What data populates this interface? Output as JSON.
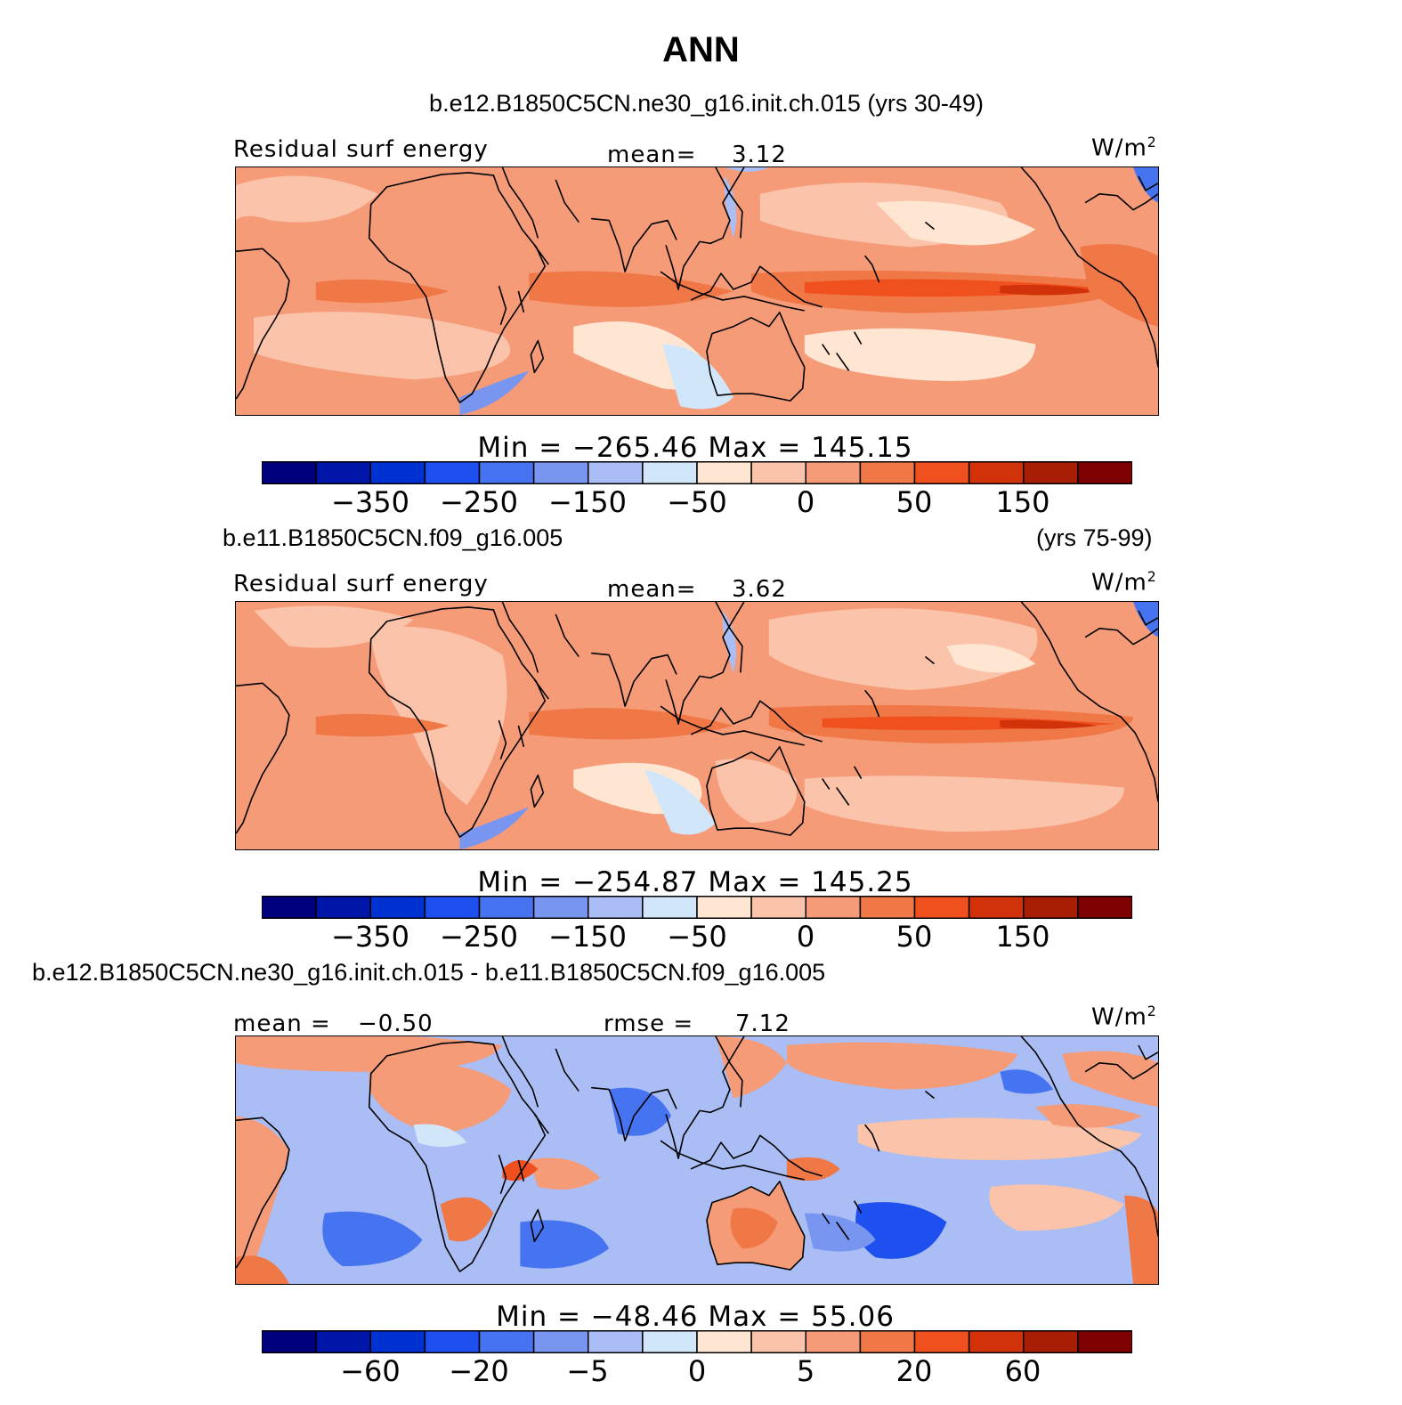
{
  "title": "ANN",
  "colors": [
    "#00007f",
    "#0016a8",
    "#0032d2",
    "#1e50f0",
    "#4674f0",
    "#7896f0",
    "#aabef5",
    "#d2e6fa",
    "#ffe6d2",
    "#fac3aa",
    "#f59b78",
    "#f07846",
    "#f0501e",
    "#d2320a",
    "#a81e04",
    "#7f0000"
  ],
  "panels": [
    {
      "run_label": "b.e12.B1850C5CN.ne30_g16.init.ch.015 (yrs 30-49)",
      "variable": "Residual surf energy",
      "stat_left_label": "",
      "stat_left_value": "",
      "stat_mid_label": "mean=",
      "stat_mid_value": "3.12",
      "units": "W/m",
      "units_exp": "2",
      "min_label": "Min",
      "min_value": "−265.46",
      "max_label": "Max",
      "max_value": "145.15",
      "ticks": [
        "−350",
        "−250",
        "−150",
        "−50",
        "0",
        "50",
        "150"
      ]
    },
    {
      "run_label": "b.e11.B1850C5CN.f09_g16.005",
      "run_years": "(yrs 75-99)",
      "variable": "Residual surf energy",
      "stat_mid_label": "mean=",
      "stat_mid_value": "3.62",
      "units": "W/m",
      "units_exp": "2",
      "min_label": "Min",
      "min_value": "−254.87",
      "max_label": "Max",
      "max_value": "145.25",
      "ticks": [
        "−350",
        "−250",
        "−150",
        "−50",
        "0",
        "50",
        "150"
      ]
    },
    {
      "run_label": "b.e12.B1850C5CN.ne30_g16.init.ch.015 - b.e11.B1850C5CN.f09_g16.005",
      "stat_left_label": "mean =",
      "stat_left_value": "−0.50",
      "stat_mid_label": "rmse =",
      "stat_mid_value": "7.12",
      "units": "W/m",
      "units_exp": "2",
      "min_label": "Min",
      "min_value": "−48.46",
      "max_label": "Max",
      "max_value": "55.06",
      "ticks": [
        "−60",
        "−20",
        "−5",
        "0",
        "5",
        "20",
        "60"
      ]
    }
  ]
}
